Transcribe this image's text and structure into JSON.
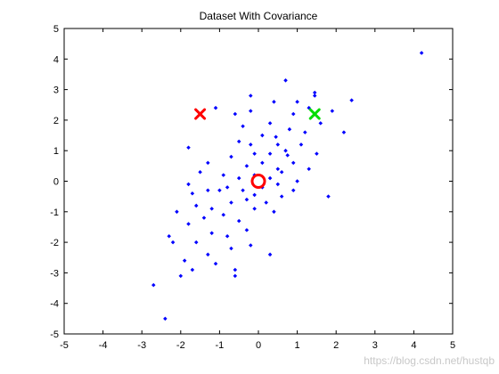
{
  "chart_data": {
    "type": "scatter",
    "title": "Dataset With Covariance",
    "xlabel": "",
    "ylabel": "",
    "xlim": [
      -5,
      5
    ],
    "ylim": [
      -5,
      5
    ],
    "xticks": [
      "-5",
      "-4",
      "-3",
      "-2",
      "-1",
      "0",
      "1",
      "2",
      "3",
      "4",
      "5"
    ],
    "yticks": [
      "5",
      "4",
      "3",
      "2",
      "1",
      "0",
      "-1",
      "-2",
      "-3",
      "-4",
      "-5"
    ],
    "grid": false,
    "legend": "none",
    "series": [
      {
        "marker": "dot",
        "color": "#0000ff",
        "points": [
          [
            4.2,
            4.2
          ],
          [
            0.7,
            3.3
          ],
          [
            1.45,
            2.9
          ],
          [
            -0.2,
            2.8
          ],
          [
            1.45,
            2.8
          ],
          [
            2.4,
            2.65
          ],
          [
            0.4,
            2.6
          ],
          [
            -1.1,
            2.4
          ],
          [
            1.0,
            2.6
          ],
          [
            0.9,
            2.2
          ],
          [
            1.3,
            2.4
          ],
          [
            1.9,
            2.3
          ],
          [
            -0.6,
            2.2
          ],
          [
            -0.2,
            2.3
          ],
          [
            -0.4,
            1.8
          ],
          [
            0.3,
            1.9
          ],
          [
            0.8,
            1.7
          ],
          [
            1.2,
            1.6
          ],
          [
            -0.5,
            1.3
          ],
          [
            0.1,
            1.5
          ],
          [
            0.5,
            1.2
          ],
          [
            2.2,
            1.6
          ],
          [
            -1.8,
            1.1
          ],
          [
            -0.2,
            1.2
          ],
          [
            0.3,
            0.9
          ],
          [
            0.7,
            1.0
          ],
          [
            1.1,
            1.2
          ],
          [
            -1.3,
            0.6
          ],
          [
            -0.7,
            0.8
          ],
          [
            -0.3,
            0.5
          ],
          [
            0.1,
            0.6
          ],
          [
            0.5,
            0.4
          ],
          [
            0.9,
            0.6
          ],
          [
            1.5,
            0.9
          ],
          [
            -1.8,
            -0.1
          ],
          [
            -1.5,
            0.3
          ],
          [
            -0.9,
            0.2
          ],
          [
            -0.5,
            0.1
          ],
          [
            -0.1,
            0.2
          ],
          [
            0.3,
            0.1
          ],
          [
            0.6,
            0.3
          ],
          [
            1.0,
            0.0
          ],
          [
            1.3,
            0.4
          ],
          [
            -1.7,
            -0.4
          ],
          [
            -1.3,
            -0.3
          ],
          [
            -0.8,
            -0.2
          ],
          [
            -0.4,
            -0.3
          ],
          [
            0.1,
            -0.2
          ],
          [
            0.5,
            -0.1
          ],
          [
            0.9,
            -0.3
          ],
          [
            1.8,
            -0.5
          ],
          [
            -2.1,
            -1.0
          ],
          [
            -1.6,
            -0.8
          ],
          [
            -1.2,
            -0.9
          ],
          [
            -0.7,
            -0.7
          ],
          [
            -0.3,
            -0.6
          ],
          [
            0.2,
            -0.7
          ],
          [
            0.6,
            -0.5
          ],
          [
            -2.3,
            -1.8
          ],
          [
            -1.8,
            -1.4
          ],
          [
            -1.4,
            -1.2
          ],
          [
            -0.9,
            -1.1
          ],
          [
            -0.5,
            -1.3
          ],
          [
            -0.1,
            -0.9
          ],
          [
            0.4,
            -1.0
          ],
          [
            -2.2,
            -2.0
          ],
          [
            -1.6,
            -2.0
          ],
          [
            -1.2,
            -1.7
          ],
          [
            -0.8,
            -1.8
          ],
          [
            -0.3,
            -1.6
          ],
          [
            -1.9,
            -2.6
          ],
          [
            -1.3,
            -2.4
          ],
          [
            -0.7,
            -2.2
          ],
          [
            -0.2,
            -2.1
          ],
          [
            -1.7,
            -2.9
          ],
          [
            -1.1,
            -2.7
          ],
          [
            -0.6,
            -2.9
          ],
          [
            0.3,
            -2.4
          ],
          [
            -2.0,
            -3.1
          ],
          [
            -0.6,
            -3.1
          ],
          [
            -2.7,
            -3.4
          ],
          [
            -2.4,
            -4.5
          ],
          [
            -0.1,
            0.9
          ],
          [
            0.45,
            1.45
          ],
          [
            -1.0,
            -0.3
          ],
          [
            -0.1,
            -0.45
          ],
          [
            0.75,
            0.85
          ],
          [
            1.6,
            1.9
          ]
        ]
      },
      {
        "name": "",
        "marker": "x",
        "color": "#ff0000",
        "points": [
          [
            -1.5,
            2.2
          ]
        ]
      },
      {
        "name": "",
        "marker": "x",
        "color": "#00dd00",
        "points": [
          [
            1.45,
            2.2
          ]
        ]
      },
      {
        "name": "",
        "marker": "circle",
        "color": "#ff0000",
        "points": [
          [
            0.0,
            0.0
          ]
        ]
      }
    ]
  },
  "watermark": "https://blog.csdn.net/hustqb"
}
